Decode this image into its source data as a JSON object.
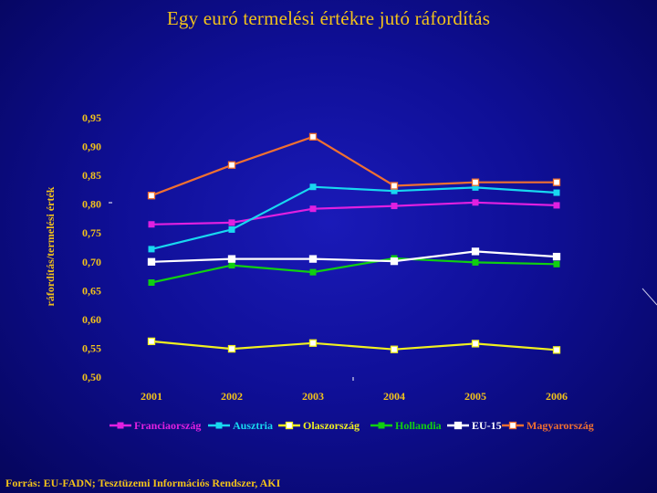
{
  "title": "Egy euró termelési értékre jutó ráfordítás",
  "source": "Forrás: EU-FADN; Tesztüzemi Információs Rendszer, AKI",
  "colors": {
    "label": "#f2c21a",
    "background": "#0f0f96"
  },
  "chart_data": {
    "type": "line",
    "title": "Egy euró termelési értékre jutó ráfordítás",
    "ylabel": "ráfordítás/termelési érték",
    "xlabel": "",
    "x": [
      "2001",
      "2002",
      "2003",
      "2004",
      "2005",
      "2006"
    ],
    "ylim": [
      0.5,
      0.95
    ],
    "yticks": [
      "0,50",
      "0,55",
      "0,60",
      "0,65",
      "0,70",
      "0,75",
      "0,80",
      "0,85",
      "0,90",
      "0,95"
    ],
    "grid": false,
    "legend_position": "bottom",
    "series": [
      {
        "name": "Franciaország",
        "color": "#e020e0",
        "marker": "square-filled",
        "values": [
          0.765,
          0.768,
          0.792,
          0.797,
          0.803,
          0.798
        ]
      },
      {
        "name": "Ausztria",
        "color": "#18d8f0",
        "marker": "square-filled",
        "values": [
          0.722,
          0.756,
          0.83,
          0.823,
          0.829,
          0.82
        ]
      },
      {
        "name": "Olaszország",
        "color": "#f0f020",
        "marker": "square-open",
        "values": [
          0.562,
          0.549,
          0.559,
          0.548,
          0.558,
          0.547
        ]
      },
      {
        "name": "Hollandia",
        "color": "#10d010",
        "marker": "square-filled",
        "values": [
          0.664,
          0.694,
          0.682,
          0.706,
          0.699,
          0.696
        ]
      },
      {
        "name": "EU-15",
        "color": "#ffffff",
        "marker": "square-open",
        "values": [
          0.7,
          0.705,
          0.705,
          0.701,
          0.718,
          0.709
        ]
      },
      {
        "name": "Magyarország",
        "color": "#f07030",
        "marker": "square-open",
        "values": [
          0.815,
          0.868,
          0.917,
          0.832,
          0.838,
          0.838
        ]
      }
    ]
  }
}
